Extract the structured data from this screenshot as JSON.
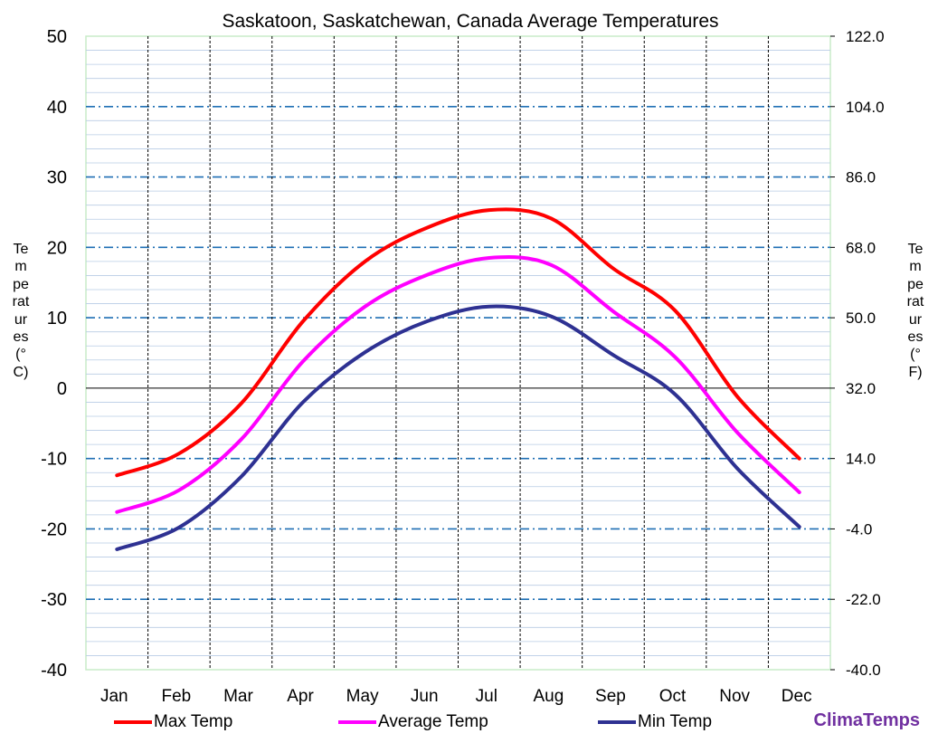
{
  "chart_data": {
    "type": "line",
    "title": "Saskatoon, Saskatchewan, Canada Average Temperatures",
    "categories": [
      "Jan",
      "Feb",
      "Mar",
      "Apr",
      "May",
      "Jun",
      "Jul",
      "Aug",
      "Sep",
      "Oct",
      "Nov",
      "Dec"
    ],
    "series": [
      {
        "name": "Max Temp",
        "color": "#ff0000",
        "values": [
          -12.4,
          -9.3,
          -2.2,
          9.5,
          18.0,
          22.8,
          25.3,
          24.1,
          17.0,
          11.0,
          -1.2,
          -10.0
        ]
      },
      {
        "name": "Average Temp",
        "color": "#ff00ff",
        "values": [
          -17.6,
          -14.5,
          -7.3,
          3.8,
          11.6,
          16.1,
          18.5,
          17.5,
          10.9,
          4.4,
          -6.3,
          -14.8
        ]
      },
      {
        "name": "Min Temp",
        "color": "#2e3192",
        "values": [
          -22.9,
          -19.8,
          -12.6,
          -2.0,
          5.1,
          9.5,
          11.6,
          10.2,
          4.7,
          -0.9,
          -11.4,
          -19.7
        ]
      }
    ],
    "y_left": {
      "label": "Temperatures (°C)",
      "range": [
        -40,
        50
      ],
      "ticks": [
        "50",
        "40",
        "30",
        "20",
        "10",
        "0",
        "-10",
        "-20",
        "-30",
        "-40"
      ]
    },
    "y_right": {
      "label": "Temperatures (°F)",
      "ticks": [
        "122.0",
        "104.0",
        "86.0",
        "68.0",
        "50.0",
        "32.0",
        "14.0",
        "-4.0",
        "-22.0",
        "-40.0"
      ]
    },
    "grid": true,
    "legend": "bottom"
  },
  "brand": "ClimaTemps"
}
